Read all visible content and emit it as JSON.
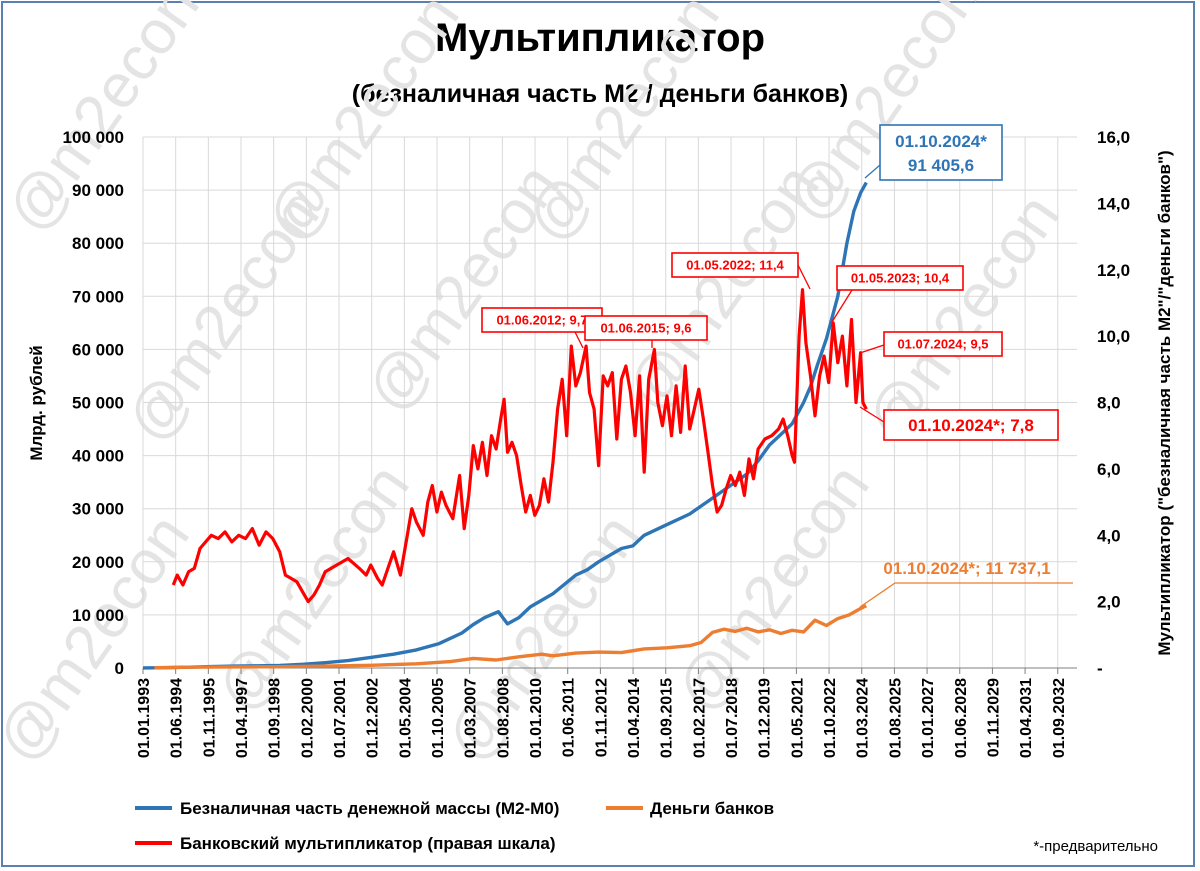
{
  "chart_data": {
    "type": "line",
    "title": "Мультипликатор",
    "subtitle": "(безналичная часть М2 / деньги банков)",
    "ylabel_left": "Млрд. рублей",
    "ylabel_right": "Мультипликатор (\"безналичная часть М2\"/\"деньги банков\")",
    "ylim_left": [
      0,
      100000
    ],
    "ylim_right": [
      0,
      16
    ],
    "yticks_left": [
      "0",
      "10 000",
      "20 000",
      "30 000",
      "40 000",
      "50 000",
      "60 000",
      "70 000",
      "80 000",
      "90 000",
      "100 000"
    ],
    "yticks_right": [
      "-",
      "2,0",
      "4,0",
      "6,0",
      "8,0",
      "10,0",
      "12,0",
      "14,0",
      "16,0"
    ],
    "xticks": [
      "01.01.1993",
      "01.06.1994",
      "01.11.1995",
      "01.04.1997",
      "01.09.1998",
      "01.02.2000",
      "01.07.2001",
      "01.12.2002",
      "01.05.2004",
      "01.10.2005",
      "01.03.2007",
      "01.08.2008",
      "01.01.2010",
      "01.06.2011",
      "01.11.2012",
      "01.04.2014",
      "01.09.2015",
      "01.02.2017",
      "01.07.2018",
      "01.12.2019",
      "01.05.2021",
      "01.10.2022",
      "01.03.2024",
      "01.08.2025",
      "01.01.2027",
      "01.06.2028",
      "01.11.2029",
      "01.04.2031",
      "01.09.2032"
    ],
    "x_range_years": [
      1993.0,
      2034.0
    ],
    "series": [
      {
        "name": "Безналичная часть денежной массы (М2-М0)",
        "axis": "left",
        "color": "#2e75b6",
        "points": [
          [
            1993.0,
            20
          ],
          [
            1994.0,
            60
          ],
          [
            1995.0,
            150
          ],
          [
            1996.0,
            260
          ],
          [
            1997.0,
            360
          ],
          [
            1998.0,
            420
          ],
          [
            1999.0,
            480
          ],
          [
            2000.0,
            700
          ],
          [
            2001.0,
            1000
          ],
          [
            2002.0,
            1400
          ],
          [
            2003.0,
            2000
          ],
          [
            2004.0,
            2600
          ],
          [
            2005.0,
            3400
          ],
          [
            2006.0,
            4600
          ],
          [
            2007.0,
            6600
          ],
          [
            2007.5,
            8200
          ],
          [
            2008.0,
            9500
          ],
          [
            2008.6,
            10600
          ],
          [
            2009.0,
            8300
          ],
          [
            2009.5,
            9500
          ],
          [
            2010.0,
            11500
          ],
          [
            2011.0,
            14000
          ],
          [
            2012.0,
            17500
          ],
          [
            2012.5,
            18500
          ],
          [
            2013.0,
            20000
          ],
          [
            2014.0,
            22500
          ],
          [
            2014.5,
            23000
          ],
          [
            2015.0,
            25000
          ],
          [
            2016.0,
            27000
          ],
          [
            2017.0,
            29000
          ],
          [
            2018.0,
            32000
          ],
          [
            2019.0,
            35000
          ],
          [
            2019.5,
            36500
          ],
          [
            2020.0,
            39000
          ],
          [
            2020.5,
            42000
          ],
          [
            2021.0,
            44000
          ],
          [
            2021.5,
            46000
          ],
          [
            2022.0,
            50000
          ],
          [
            2022.3,
            53000
          ],
          [
            2022.6,
            57000
          ],
          [
            2023.0,
            62000
          ],
          [
            2023.5,
            70000
          ],
          [
            2023.9,
            80000
          ],
          [
            2024.2,
            86000
          ],
          [
            2024.5,
            89500
          ],
          [
            2024.75,
            91405.6
          ]
        ]
      },
      {
        "name": "Деньги банков",
        "axis": "left",
        "color": "#ed7d31",
        "points": [
          [
            1993.5,
            50
          ],
          [
            1995.0,
            150
          ],
          [
            1997.0,
            200
          ],
          [
            1999.0,
            250
          ],
          [
            2001.0,
            350
          ],
          [
            2003.0,
            500
          ],
          [
            2005.0,
            800
          ],
          [
            2006.5,
            1200
          ],
          [
            2007.5,
            1800
          ],
          [
            2008.5,
            1500
          ],
          [
            2009.5,
            2100
          ],
          [
            2010.5,
            2600
          ],
          [
            2011.0,
            2300
          ],
          [
            2012.0,
            2800
          ],
          [
            2013.0,
            3000
          ],
          [
            2014.0,
            2900
          ],
          [
            2015.0,
            3600
          ],
          [
            2016.0,
            3800
          ],
          [
            2017.0,
            4200
          ],
          [
            2017.5,
            4800
          ],
          [
            2018.0,
            6700
          ],
          [
            2018.5,
            7300
          ],
          [
            2019.0,
            6900
          ],
          [
            2019.5,
            7500
          ],
          [
            2020.0,
            6800
          ],
          [
            2020.5,
            7200
          ],
          [
            2021.0,
            6500
          ],
          [
            2021.5,
            7100
          ],
          [
            2022.0,
            6800
          ],
          [
            2022.5,
            9000
          ],
          [
            2023.0,
            8000
          ],
          [
            2023.5,
            9300
          ],
          [
            2024.0,
            10000
          ],
          [
            2024.5,
            11200
          ],
          [
            2024.75,
            11737.1
          ]
        ]
      },
      {
        "name": "Банковский мультипликатор (правая шкала)",
        "axis": "right",
        "color": "#ff0000",
        "points": [
          [
            1994.33,
            2.5
          ],
          [
            1994.5,
            2.8
          ],
          [
            1994.75,
            2.5
          ],
          [
            1995.0,
            2.9
          ],
          [
            1995.25,
            3.0
          ],
          [
            1995.5,
            3.6
          ],
          [
            1995.75,
            3.8
          ],
          [
            1996.0,
            4.0
          ],
          [
            1996.3,
            3.9
          ],
          [
            1996.6,
            4.1
          ],
          [
            1996.9,
            3.8
          ],
          [
            1997.2,
            4.0
          ],
          [
            1997.5,
            3.9
          ],
          [
            1997.8,
            4.2
          ],
          [
            1998.1,
            3.7
          ],
          [
            1998.4,
            4.1
          ],
          [
            1998.7,
            3.9
          ],
          [
            1999.0,
            3.5
          ],
          [
            1999.25,
            2.8
          ],
          [
            1999.5,
            2.7
          ],
          [
            1999.75,
            2.6
          ],
          [
            2000.0,
            2.3
          ],
          [
            2000.25,
            2.0
          ],
          [
            2000.5,
            2.2
          ],
          [
            2000.75,
            2.5
          ],
          [
            2001.0,
            2.9
          ],
          [
            2001.5,
            3.1
          ],
          [
            2002.0,
            3.3
          ],
          [
            2002.5,
            3.0
          ],
          [
            2002.8,
            2.8
          ],
          [
            2003.0,
            3.1
          ],
          [
            2003.3,
            2.7
          ],
          [
            2003.5,
            2.5
          ],
          [
            2003.75,
            3.0
          ],
          [
            2004.0,
            3.5
          ],
          [
            2004.3,
            2.8
          ],
          [
            2004.6,
            4.0
          ],
          [
            2004.8,
            4.8
          ],
          [
            2005.0,
            4.4
          ],
          [
            2005.3,
            4.0
          ],
          [
            2005.5,
            5.0
          ],
          [
            2005.7,
            5.5
          ],
          [
            2005.9,
            4.7
          ],
          [
            2006.1,
            5.3
          ],
          [
            2006.3,
            4.9
          ],
          [
            2006.6,
            4.5
          ],
          [
            2006.9,
            5.8
          ],
          [
            2007.1,
            4.2
          ],
          [
            2007.3,
            5.2
          ],
          [
            2007.5,
            6.7
          ],
          [
            2007.7,
            6.0
          ],
          [
            2007.9,
            6.8
          ],
          [
            2008.1,
            5.8
          ],
          [
            2008.3,
            7.0
          ],
          [
            2008.5,
            6.6
          ],
          [
            2008.7,
            7.5
          ],
          [
            2008.85,
            8.1
          ],
          [
            2009.0,
            6.5
          ],
          [
            2009.2,
            6.8
          ],
          [
            2009.4,
            6.4
          ],
          [
            2009.6,
            5.5
          ],
          [
            2009.8,
            4.7
          ],
          [
            2010.0,
            5.2
          ],
          [
            2010.2,
            4.6
          ],
          [
            2010.4,
            4.9
          ],
          [
            2010.6,
            5.7
          ],
          [
            2010.8,
            5.0
          ],
          [
            2011.0,
            6.2
          ],
          [
            2011.2,
            7.8
          ],
          [
            2011.4,
            8.7
          ],
          [
            2011.6,
            7.0
          ],
          [
            2011.8,
            9.7
          ],
          [
            2012.0,
            8.5
          ],
          [
            2012.2,
            8.9
          ],
          [
            2012.45,
            9.7
          ],
          [
            2012.6,
            8.3
          ],
          [
            2012.8,
            7.8
          ],
          [
            2013.0,
            6.1
          ],
          [
            2013.2,
            8.8
          ],
          [
            2013.4,
            8.5
          ],
          [
            2013.6,
            8.9
          ],
          [
            2013.8,
            6.9
          ],
          [
            2014.0,
            8.7
          ],
          [
            2014.2,
            9.1
          ],
          [
            2014.4,
            8.3
          ],
          [
            2014.6,
            7.0
          ],
          [
            2014.8,
            8.8
          ],
          [
            2015.0,
            5.9
          ],
          [
            2015.2,
            8.7
          ],
          [
            2015.45,
            9.6
          ],
          [
            2015.6,
            8.0
          ],
          [
            2015.8,
            7.3
          ],
          [
            2016.0,
            8.2
          ],
          [
            2016.2,
            7.0
          ],
          [
            2016.4,
            8.5
          ],
          [
            2016.6,
            7.1
          ],
          [
            2016.8,
            9.1
          ],
          [
            2017.0,
            7.2
          ],
          [
            2017.2,
            7.8
          ],
          [
            2017.4,
            8.4
          ],
          [
            2017.6,
            7.5
          ],
          [
            2017.8,
            6.5
          ],
          [
            2018.0,
            5.5
          ],
          [
            2018.2,
            4.7
          ],
          [
            2018.4,
            4.9
          ],
          [
            2018.6,
            5.4
          ],
          [
            2018.8,
            5.8
          ],
          [
            2019.0,
            5.5
          ],
          [
            2019.2,
            5.9
          ],
          [
            2019.4,
            5.2
          ],
          [
            2019.6,
            6.3
          ],
          [
            2019.8,
            5.7
          ],
          [
            2020.0,
            6.6
          ],
          [
            2020.3,
            6.9
          ],
          [
            2020.6,
            7.0
          ],
          [
            2020.9,
            7.2
          ],
          [
            2021.1,
            7.5
          ],
          [
            2021.3,
            7.0
          ],
          [
            2021.5,
            6.4
          ],
          [
            2021.6,
            6.2
          ],
          [
            2021.8,
            10.0
          ],
          [
            2021.95,
            11.4
          ],
          [
            2022.1,
            9.8
          ],
          [
            2022.3,
            8.8
          ],
          [
            2022.5,
            7.6
          ],
          [
            2022.7,
            8.8
          ],
          [
            2022.9,
            9.4
          ],
          [
            2023.1,
            8.6
          ],
          [
            2023.3,
            10.4
          ],
          [
            2023.5,
            9.2
          ],
          [
            2023.7,
            10.0
          ],
          [
            2023.9,
            8.5
          ],
          [
            2024.1,
            10.5
          ],
          [
            2024.3,
            8.0
          ],
          [
            2024.5,
            9.5
          ],
          [
            2024.6,
            8.0
          ],
          [
            2024.75,
            7.8
          ]
        ]
      }
    ],
    "annotations": [
      {
        "label": "01.10.2024*",
        "value": "91 405,6",
        "color": "#2e75b6"
      },
      {
        "label": "01.06.2012;  9,7",
        "color": "#ff0000"
      },
      {
        "label": "01.06.2015;  9,6",
        "color": "#ff0000"
      },
      {
        "label": "01.05.2022;  11,4",
        "color": "#ff0000"
      },
      {
        "label": "01.05.2023;  10,4",
        "color": "#ff0000"
      },
      {
        "label": "01.07.2024;  9,5",
        "color": "#ff0000"
      },
      {
        "label": "01.10.2024*;  7,8",
        "color": "#ff0000"
      },
      {
        "label": "01.10.2024*;  11 737,1",
        "color": "#ed7d31"
      }
    ],
    "legend": [
      "Безналичная часть денежной массы (М2-М0)",
      "Деньги банков",
      "Банковский мультипликатор (правая шкала)"
    ],
    "footnote": "*-предварительно",
    "watermark": "@m2econ"
  }
}
